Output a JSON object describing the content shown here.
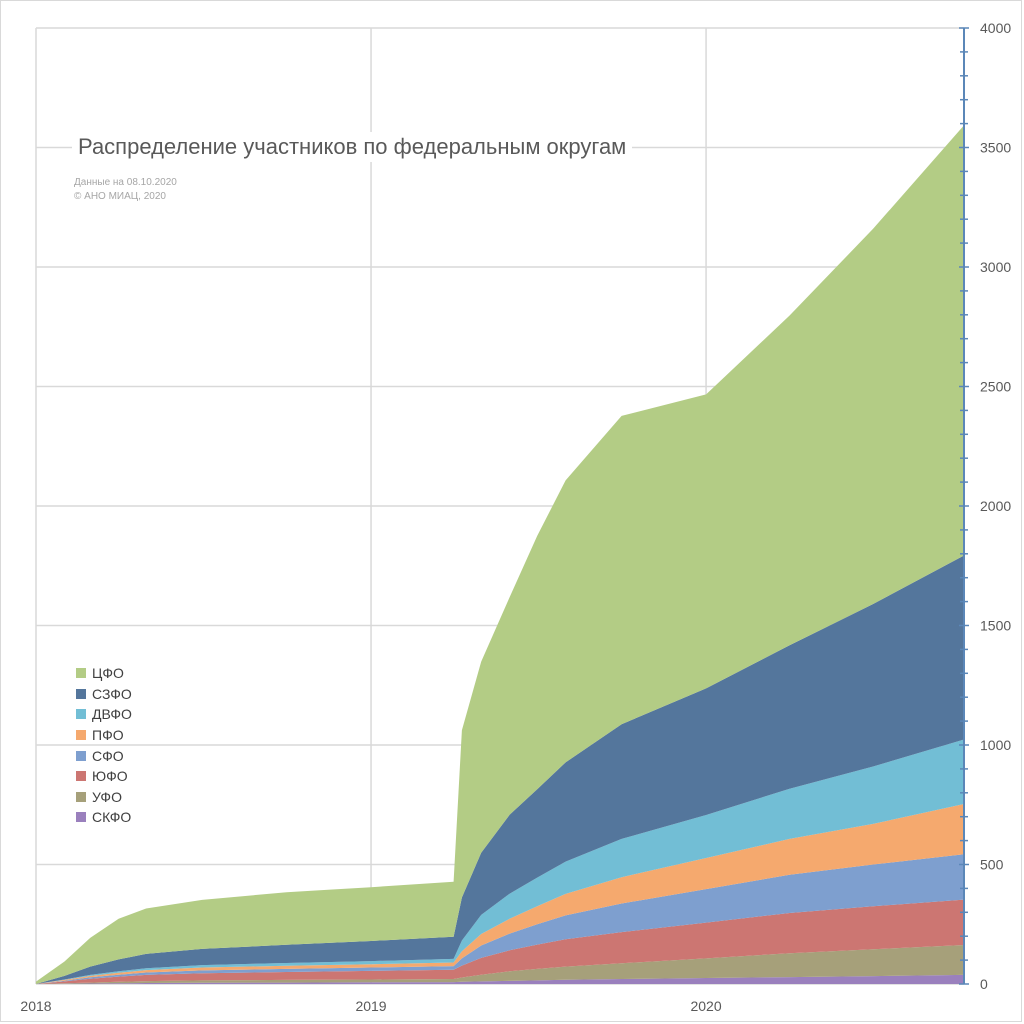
{
  "chart_data": {
    "type": "area",
    "stacked": true,
    "title": "Распределение участников по федеральным округам",
    "subtitle_lines": [
      "Данные на 08.10.2020",
      "© АНО МИАЦ, 2020"
    ],
    "xlabel": "",
    "ylabel": "",
    "x_ticks": [
      "2018",
      "2019",
      "2020"
    ],
    "x_range": [
      "2018-01-01",
      "2020-10-08"
    ],
    "y_ticks": [
      0,
      500,
      1000,
      1500,
      2000,
      2500,
      3000,
      3500,
      4000
    ],
    "ylim": [
      0,
      4000
    ],
    "y_axis_side": "right",
    "grid": true,
    "legend_position": "middle-left",
    "dates": [
      "2018-01-01",
      "2018-02-01",
      "2018-03-01",
      "2018-04-01",
      "2018-05-01",
      "2018-07-01",
      "2018-10-01",
      "2019-01-01",
      "2019-04-01",
      "2019-04-10",
      "2019-05-01",
      "2019-06-01",
      "2019-07-01",
      "2019-08-01",
      "2019-10-01",
      "2020-01-01",
      "2020-04-01",
      "2020-07-01",
      "2020-10-08"
    ],
    "series": [
      {
        "name": "СКФО",
        "color": "#9a80bd",
        "values": [
          0,
          1,
          2,
          3,
          4,
          5,
          6,
          7,
          8,
          9,
          11,
          13,
          15,
          18,
          21,
          25,
          29,
          33,
          38
        ]
      },
      {
        "name": "УФО",
        "color": "#a6a07a",
        "values": [
          0,
          2,
          4,
          6,
          8,
          10,
          11,
          12,
          13,
          18,
          28,
          40,
          48,
          55,
          66,
          82,
          100,
          112,
          125
        ]
      },
      {
        "name": "ЮФО",
        "color": "#cc7672",
        "values": [
          0,
          8,
          16,
          22,
          26,
          30,
          33,
          36,
          39,
          50,
          70,
          88,
          102,
          114,
          130,
          150,
          168,
          180,
          190
        ]
      },
      {
        "name": "СФО",
        "color": "#7e9fcf",
        "values": [
          0,
          3,
          6,
          8,
          10,
          12,
          13,
          14,
          15,
          30,
          52,
          70,
          85,
          100,
          120,
          140,
          160,
          175,
          190
        ]
      },
      {
        "name": "ПФО",
        "color": "#f5a96e",
        "values": [
          0,
          3,
          6,
          8,
          10,
          12,
          13,
          14,
          15,
          30,
          48,
          62,
          75,
          90,
          110,
          130,
          150,
          170,
          210
        ]
      },
      {
        "name": "ДВФО",
        "color": "#72bed5",
        "values": [
          0,
          2,
          4,
          6,
          8,
          10,
          12,
          13,
          15,
          45,
          80,
          105,
          120,
          135,
          160,
          180,
          210,
          240,
          270
        ]
      },
      {
        "name": "СЗФО",
        "color": "#54769c",
        "values": [
          0,
          15,
          35,
          50,
          60,
          68,
          76,
          84,
          93,
          180,
          260,
          330,
          370,
          415,
          480,
          530,
          600,
          680,
          770
        ]
      },
      {
        "name": "ЦФО",
        "color": "#b3cc85",
        "values": [
          10,
          60,
          120,
          170,
          190,
          205,
          220,
          225,
          230,
          700,
          800,
          910,
          1060,
          1180,
          1290,
          1230,
          1380,
          1570,
          1800
        ]
      }
    ]
  }
}
